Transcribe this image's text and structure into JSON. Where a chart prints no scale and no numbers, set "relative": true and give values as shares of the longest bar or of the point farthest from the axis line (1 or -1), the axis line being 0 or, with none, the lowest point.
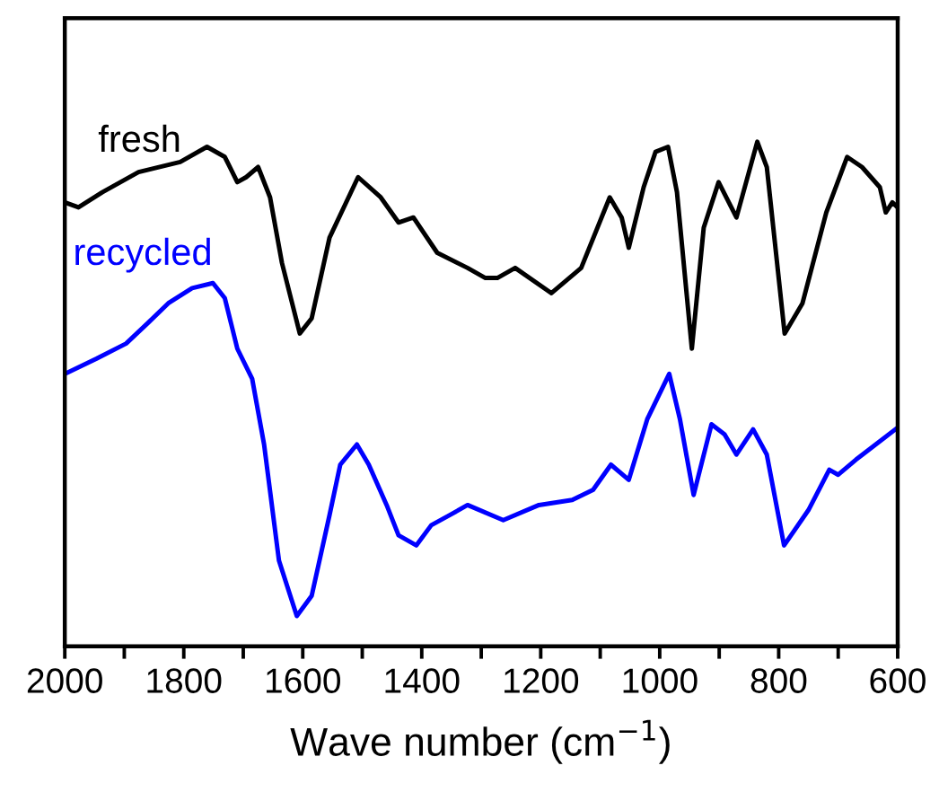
{
  "chart_data": {
    "type": "line",
    "xlabel": "Wave number (cm$^{−1}$)",
    "relative": true,
    "xlim": [
      2000,
      600
    ],
    "xticks": [
      2000,
      {
        "value": 1900,
        "label": null
      },
      1800,
      {
        "value": 1700,
        "label": null
      },
      1600,
      {
        "value": 1500,
        "label": null
      },
      1400,
      {
        "value": 1300,
        "label": null
      },
      1200,
      {
        "value": 1100,
        "label": null
      },
      1000,
      {
        "value": 900,
        "label": null
      },
      800,
      {
        "value": 700,
        "label": null
      },
      600
    ],
    "grid": false,
    "legend": false,
    "marker": "none",
    "line_style": "solid",
    "series": [
      {
        "name": "fresh",
        "color": "#000000",
        "x": [
          2000,
          1977,
          1937,
          1876,
          1806,
          1761,
          1731,
          1710,
          1695,
          1675,
          1655,
          1635,
          1605,
          1585,
          1555,
          1507,
          1469,
          1439,
          1414,
          1374,
          1323,
          1293,
          1273,
          1243,
          1182,
          1132,
          1084,
          1064,
          1052,
          1027,
          1007,
          986,
          971,
          946,
          926,
          901,
          871,
          836,
          820,
          790,
          760,
          720,
          685,
          660,
          630,
          620,
          609,
          600
        ],
        "values": [
          0.88,
          0.87,
          0.9,
          0.94,
          0.96,
          0.99,
          0.97,
          0.92,
          0.93,
          0.95,
          0.89,
          0.76,
          0.62,
          0.65,
          0.81,
          0.93,
          0.89,
          0.84,
          0.85,
          0.78,
          0.75,
          0.73,
          0.73,
          0.75,
          0.7,
          0.75,
          0.89,
          0.85,
          0.79,
          0.91,
          0.98,
          0.99,
          0.9,
          0.59,
          0.83,
          0.92,
          0.85,
          1,
          0.95,
          0.62,
          0.68,
          0.86,
          0.97,
          0.95,
          0.91,
          0.86,
          0.88,
          0.87
        ]
      },
      {
        "name": "recycled",
        "color": "#0000ff",
        "x": [
          2000,
          1947,
          1897,
          1861,
          1826,
          1786,
          1751,
          1731,
          1710,
          1685,
          1665,
          1640,
          1610,
          1585,
          1555,
          1537,
          1509,
          1489,
          1459,
          1439,
          1409,
          1384,
          1353,
          1323,
          1263,
          1203,
          1147,
          1112,
          1082,
          1052,
          1021,
          984,
          966,
          943,
          913,
          891,
          871,
          843,
          820,
          791,
          750,
          715,
          700,
          670,
          604
        ],
        "values": [
          0.54,
          0.57,
          0.6,
          0.64,
          0.68,
          0.71,
          0.72,
          0.69,
          0.59,
          0.53,
          0.4,
          0.17,
          0.06,
          0.1,
          0.26,
          0.36,
          0.4,
          0.36,
          0.28,
          0.22,
          0.2,
          0.24,
          0.26,
          0.28,
          0.25,
          0.28,
          0.29,
          0.31,
          0.36,
          0.33,
          0.45,
          0.54,
          0.45,
          0.3,
          0.44,
          0.42,
          0.38,
          0.43,
          0.38,
          0.2,
          0.27,
          0.35,
          0.34,
          0.37,
          0.43
        ]
      }
    ]
  }
}
